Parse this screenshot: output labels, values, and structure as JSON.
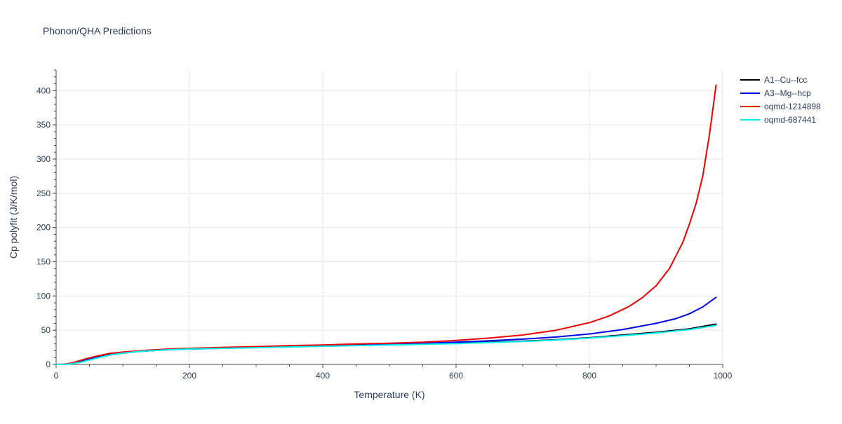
{
  "chart_data": {
    "type": "line",
    "title": "Phonon/QHA Predictions",
    "xlabel": "Temperature (K)",
    "ylabel": "Cp polyfit (J/K/mol)",
    "xlim": [
      0,
      1000
    ],
    "ylim": [
      0,
      430
    ],
    "xticks": [
      0,
      200,
      400,
      600,
      800,
      1000
    ],
    "yticks": [
      0,
      50,
      100,
      150,
      200,
      250,
      300,
      350,
      400
    ],
    "grid": true,
    "legend_position": "top-right",
    "series": [
      {
        "name": "A1--Cu--fcc",
        "color": "#000000",
        "x": [
          0,
          10,
          20,
          30,
          40,
          50,
          60,
          70,
          80,
          90,
          100,
          120,
          140,
          160,
          180,
          200,
          250,
          300,
          350,
          400,
          450,
          500,
          550,
          600,
          650,
          700,
          750,
          800,
          850,
          900,
          950,
          990
        ],
        "y": [
          0,
          0.2,
          1,
          3,
          5.5,
          8,
          10.5,
          12.5,
          14.5,
          16,
          17,
          19,
          20.5,
          21.5,
          22.5,
          23,
          24,
          25,
          26,
          27,
          28,
          29,
          30,
          31,
          32.5,
          34,
          36,
          39,
          43,
          47,
          52,
          59
        ]
      },
      {
        "name": "A3--Mg--hcp",
        "color": "#0000ee",
        "x": [
          0,
          10,
          20,
          30,
          40,
          50,
          60,
          70,
          80,
          90,
          100,
          120,
          140,
          160,
          180,
          200,
          250,
          300,
          350,
          400,
          450,
          500,
          550,
          600,
          650,
          700,
          750,
          800,
          850,
          900,
          930,
          950,
          970,
          990
        ],
        "y": [
          0,
          0.1,
          0.8,
          2.5,
          5,
          7.5,
          10,
          12,
          14,
          15.5,
          16.5,
          18.5,
          20,
          21,
          22,
          22.5,
          23.5,
          25,
          26,
          27,
          28,
          29.5,
          31,
          32.5,
          34.5,
          37,
          40,
          44.5,
          51,
          60,
          67,
          74,
          84,
          98
        ]
      },
      {
        "name": "oqmd-1214898",
        "color": "#ee0000",
        "x": [
          0,
          10,
          20,
          30,
          40,
          50,
          60,
          70,
          80,
          90,
          100,
          120,
          140,
          160,
          180,
          200,
          250,
          300,
          350,
          400,
          450,
          500,
          550,
          600,
          650,
          700,
          750,
          800,
          830,
          860,
          880,
          900,
          920,
          940,
          950,
          960,
          970,
          980,
          990
        ],
        "y": [
          0,
          0.3,
          1.5,
          4,
          7,
          9.5,
          12,
          14,
          16,
          17,
          18,
          19.5,
          21,
          22,
          23,
          23.5,
          25,
          26,
          27.5,
          28.5,
          30,
          31,
          32.5,
          35,
          38.5,
          43,
          50,
          61,
          71,
          85,
          98,
          115,
          140,
          178,
          205,
          235,
          275,
          335,
          408
        ]
      },
      {
        "name": "oqmd-687441",
        "color": "#00eeee",
        "x": [
          0,
          10,
          20,
          30,
          40,
          50,
          60,
          70,
          80,
          90,
          100,
          120,
          140,
          160,
          180,
          200,
          250,
          300,
          350,
          400,
          450,
          500,
          550,
          600,
          650,
          700,
          750,
          800,
          850,
          900,
          950,
          990
        ],
        "y": [
          0,
          0.1,
          0.6,
          2,
          4,
          6.5,
          9,
          11.5,
          13.5,
          15,
          16.5,
          18.5,
          20,
          21,
          22,
          22.5,
          23.5,
          24.5,
          25.5,
          26.5,
          27.5,
          28.5,
          29.5,
          30.5,
          32,
          33.5,
          35.5,
          38.5,
          42,
          46,
          51,
          57
        ]
      }
    ]
  }
}
